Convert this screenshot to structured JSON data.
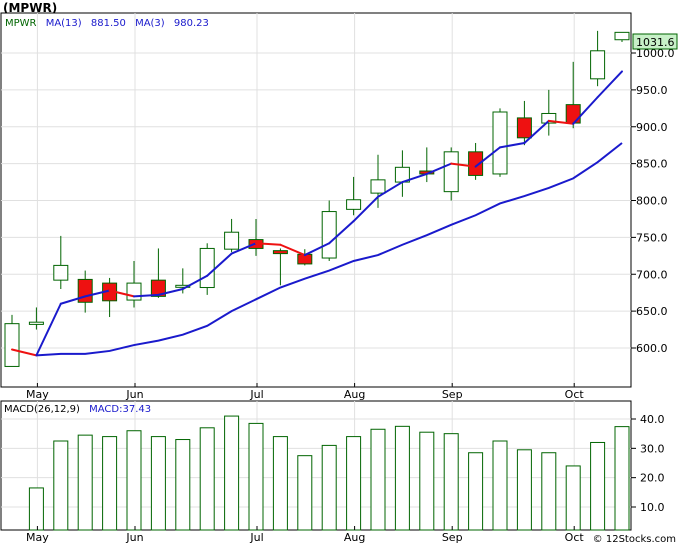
{
  "title": "(MPWR)",
  "price_label": "1031.6",
  "watermark": "© 12Stocks.com",
  "colors": {
    "up_fill": "#ffffff",
    "up_stroke": "#006400",
    "down_fill": "#ee1111",
    "ma13": "#1a1acc",
    "ma3_up": "#1a1acc",
    "ma3_down": "#ee1111",
    "macd_bar": "#006400",
    "price_box": "#c8f0c8"
  },
  "chart_data": [
    {
      "type": "candlestick",
      "legend": [
        {
          "text": "MPWR",
          "color": "#006400"
        },
        {
          "text": "MA(13)",
          "color": "#1a1acc"
        },
        {
          "text": "881.50",
          "color": "#1a1acc"
        },
        {
          "text": "MA(3)",
          "color": "#1a1acc"
        },
        {
          "text": "980.23",
          "color": "#1a1acc"
        }
      ],
      "x_labels": [
        {
          "text": "May",
          "week": 1.5
        },
        {
          "text": "Jun",
          "week": 5.5
        },
        {
          "text": "Jul",
          "week": 10.5
        },
        {
          "text": "Aug",
          "week": 14.5
        },
        {
          "text": "Sep",
          "week": 18.5
        },
        {
          "text": "Oct",
          "week": 23.5
        }
      ],
      "y_ticks": [
        600,
        650,
        700,
        750,
        800,
        850,
        900,
        950,
        1000
      ],
      "y_tick_labels": [
        "600.0",
        "650.0",
        "700.0",
        "750.0",
        "800.0",
        "850.0",
        "900.0",
        "950.0",
        "1000.0"
      ],
      "ylim": [
        555,
        1070
      ],
      "candles": [
        {
          "o": 575,
          "h": 645,
          "l": 575,
          "c": 633
        },
        {
          "o": 632,
          "h": 655,
          "l": 625,
          "c": 635
        },
        {
          "o": 692,
          "h": 752,
          "l": 680,
          "c": 712
        },
        {
          "o": 693,
          "h": 705,
          "l": 648,
          "c": 662
        },
        {
          "o": 688,
          "h": 695,
          "l": 642,
          "c": 664
        },
        {
          "o": 665,
          "h": 718,
          "l": 655,
          "c": 688
        },
        {
          "o": 692,
          "h": 735,
          "l": 668,
          "c": 670
        },
        {
          "o": 683,
          "h": 708,
          "l": 674,
          "c": 685
        },
        {
          "o": 682,
          "h": 742,
          "l": 672,
          "c": 735
        },
        {
          "o": 734,
          "h": 775,
          "l": 730,
          "c": 757
        },
        {
          "o": 747,
          "h": 775,
          "l": 725,
          "c": 735
        },
        {
          "o": 732,
          "h": 735,
          "l": 685,
          "c": 728
        },
        {
          "o": 727,
          "h": 734,
          "l": 712,
          "c": 714
        },
        {
          "o": 722,
          "h": 800,
          "l": 718,
          "c": 785
        },
        {
          "o": 788,
          "h": 832,
          "l": 780,
          "c": 801
        },
        {
          "o": 810,
          "h": 862,
          "l": 790,
          "c": 828
        },
        {
          "o": 825,
          "h": 868,
          "l": 805,
          "c": 845
        },
        {
          "o": 840,
          "h": 872,
          "l": 825,
          "c": 836
        },
        {
          "o": 812,
          "h": 872,
          "l": 800,
          "c": 866
        },
        {
          "o": 866,
          "h": 878,
          "l": 828,
          "c": 834
        },
        {
          "o": 836,
          "h": 925,
          "l": 832,
          "c": 920
        },
        {
          "o": 912,
          "h": 935,
          "l": 875,
          "c": 885
        },
        {
          "o": 905,
          "h": 950,
          "l": 888,
          "c": 918
        },
        {
          "o": 930,
          "h": 988,
          "l": 898,
          "c": 905
        },
        {
          "o": 965,
          "h": 1030,
          "l": 955,
          "c": 1003
        },
        {
          "o": 1018,
          "h": 1028,
          "l": 1015,
          "c": 1028
        }
      ],
      "ma13": [
        {
          "week": 1,
          "value": 590
        },
        {
          "week": 2,
          "value": 592
        },
        {
          "week": 3,
          "value": 592
        },
        {
          "week": 4,
          "value": 596
        },
        {
          "week": 5,
          "value": 604
        },
        {
          "week": 6,
          "value": 610
        },
        {
          "week": 7,
          "value": 618
        },
        {
          "week": 8,
          "value": 630
        },
        {
          "week": 9,
          "value": 650
        },
        {
          "week": 10,
          "value": 666
        },
        {
          "week": 11,
          "value": 682
        },
        {
          "week": 12,
          "value": 694
        },
        {
          "week": 13,
          "value": 705
        },
        {
          "week": 14,
          "value": 718
        },
        {
          "week": 15,
          "value": 726
        },
        {
          "week": 16,
          "value": 740
        },
        {
          "week": 17,
          "value": 753
        },
        {
          "week": 18,
          "value": 767
        },
        {
          "week": 19,
          "value": 780
        },
        {
          "week": 20,
          "value": 796
        },
        {
          "week": 21,
          "value": 806
        },
        {
          "week": 22,
          "value": 817
        },
        {
          "week": 23,
          "value": 830
        },
        {
          "week": 24,
          "value": 852
        },
        {
          "week": 25,
          "value": 878
        }
      ],
      "ma3": [
        {
          "week": 0,
          "value": 598,
          "dir": "down"
        },
        {
          "week": 1,
          "value": 590,
          "dir": "down"
        },
        {
          "week": 2,
          "value": 660,
          "dir": "up"
        },
        {
          "week": 3,
          "value": 670,
          "dir": "up"
        },
        {
          "week": 4,
          "value": 678,
          "dir": "up"
        },
        {
          "week": 5,
          "value": 670,
          "dir": "down"
        },
        {
          "week": 6,
          "value": 672,
          "dir": "up"
        },
        {
          "week": 7,
          "value": 680,
          "dir": "up"
        },
        {
          "week": 8,
          "value": 698,
          "dir": "up"
        },
        {
          "week": 9,
          "value": 728,
          "dir": "up"
        },
        {
          "week": 10,
          "value": 742,
          "dir": "up"
        },
        {
          "week": 11,
          "value": 740,
          "dir": "down"
        },
        {
          "week": 12,
          "value": 726,
          "dir": "down"
        },
        {
          "week": 13,
          "value": 742,
          "dir": "up"
        },
        {
          "week": 14,
          "value": 772,
          "dir": "up"
        },
        {
          "week": 15,
          "value": 805,
          "dir": "up"
        },
        {
          "week": 16,
          "value": 825,
          "dir": "up"
        },
        {
          "week": 17,
          "value": 836,
          "dir": "up"
        },
        {
          "week": 18,
          "value": 850,
          "dir": "up"
        },
        {
          "week": 19,
          "value": 846,
          "dir": "down"
        },
        {
          "week": 20,
          "value": 872,
          "dir": "up"
        },
        {
          "week": 21,
          "value": 878,
          "dir": "up"
        },
        {
          "week": 22,
          "value": 908,
          "dir": "up"
        },
        {
          "week": 23,
          "value": 904,
          "dir": "down"
        },
        {
          "week": 24,
          "value": 940,
          "dir": "up"
        },
        {
          "week": 25,
          "value": 975,
          "dir": "up"
        }
      ]
    },
    {
      "type": "bar",
      "legend": [
        {
          "text": "MACD(26,12,9)",
          "color": "#000000"
        },
        {
          "text": "MACD:37.43",
          "color": "#1a1acc"
        }
      ],
      "y_ticks": [
        10,
        20,
        30,
        40
      ],
      "y_tick_labels": [
        "10.0",
        "20.0",
        "30.0",
        "40.0"
      ],
      "ylim": [
        2,
        44
      ],
      "values": [
        16.5,
        32.5,
        34.5,
        34,
        36,
        34,
        33,
        37,
        41,
        38.5,
        34,
        27.5,
        31,
        34,
        36.5,
        37.5,
        35.5,
        35,
        28.5,
        32.5,
        29.5,
        28.5,
        24,
        32,
        37.4
      ]
    }
  ]
}
